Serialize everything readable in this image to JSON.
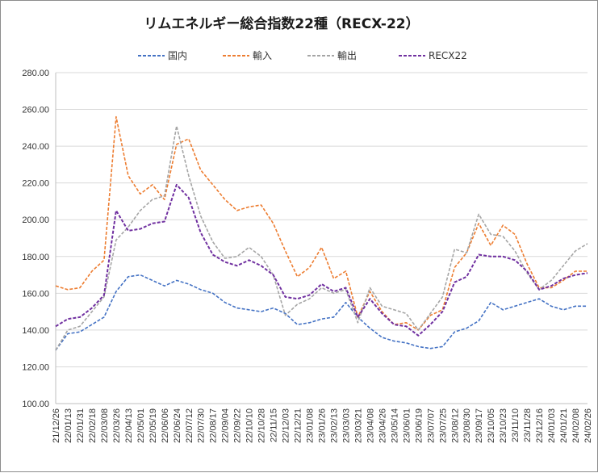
{
  "chart_data": {
    "type": "line",
    "title": "リムエネルギー総合指数22種（RECX-22）",
    "ylim": [
      100,
      280
    ],
    "yticks": [
      "100.00",
      "120.00",
      "140.00",
      "160.00",
      "180.00",
      "200.00",
      "220.00",
      "240.00",
      "260.00",
      "280.00"
    ],
    "grid": true,
    "legend_position": "top",
    "categories": [
      "21/12/26",
      "22/01/13",
      "22/01/31",
      "22/02/18",
      "22/03/08",
      "22/03/26",
      "22/04/13",
      "22/05/01",
      "22/05/19",
      "22/06/06",
      "22/06/24",
      "22/07/12",
      "22/07/30",
      "22/08/17",
      "22/09/04",
      "22/09/22",
      "22/10/10",
      "22/10/28",
      "22/11/15",
      "22/12/03",
      "22/12/21",
      "23/01/08",
      "23/01/26",
      "23/02/13",
      "23/03/03",
      "23/03/21",
      "23/04/08",
      "23/04/26",
      "23/05/14",
      "23/06/01",
      "23/06/19",
      "23/07/07",
      "23/07/25",
      "23/08/12",
      "23/08/30",
      "23/09/17",
      "23/10/05",
      "23/10/23",
      "23/11/10",
      "23/11/28",
      "23/12/16",
      "24/01/03",
      "24/01/21",
      "24/02/08",
      "24/02/26"
    ],
    "series": [
      {
        "name": "国内",
        "color": "#4472c4",
        "values": [
          129,
          138,
          139,
          143,
          147,
          161,
          169,
          170,
          167,
          164,
          167,
          165,
          162,
          160,
          155,
          152,
          151,
          150,
          152,
          149,
          143,
          144,
          146,
          147,
          155,
          147,
          141,
          136,
          134,
          133,
          131,
          130,
          131,
          139,
          141,
          145,
          155,
          151,
          153,
          155,
          157,
          153,
          151,
          153,
          153
        ]
      },
      {
        "name": "輸入",
        "color": "#ed7d31",
        "values": [
          164,
          162,
          163,
          172,
          178,
          256,
          224,
          214,
          219,
          211,
          241,
          244,
          227,
          219,
          211,
          205,
          207,
          208,
          198,
          183,
          169,
          174,
          185,
          168,
          172,
          147,
          161,
          150,
          143,
          144,
          140,
          148,
          151,
          174,
          182,
          198,
          186,
          197,
          192,
          176,
          163,
          163,
          167,
          172,
          172
        ]
      },
      {
        "name": "輸出",
        "color": "#a5a5a5",
        "values": [
          129,
          140,
          142,
          150,
          158,
          189,
          196,
          205,
          211,
          213,
          251,
          224,
          202,
          188,
          179,
          180,
          185,
          180,
          170,
          148,
          154,
          157,
          163,
          160,
          162,
          144,
          163,
          153,
          151,
          149,
          140,
          149,
          158,
          184,
          182,
          203,
          192,
          191,
          183,
          171,
          162,
          167,
          175,
          183,
          187
        ]
      },
      {
        "name": "RECX22",
        "color": "#7030a0",
        "values": [
          142,
          146,
          147,
          152,
          159,
          205,
          194,
          195,
          198,
          199,
          219,
          212,
          193,
          181,
          177,
          175,
          178,
          175,
          170,
          158,
          157,
          159,
          165,
          161,
          163,
          147,
          157,
          149,
          143,
          142,
          137,
          143,
          150,
          166,
          169,
          181,
          180,
          180,
          178,
          172,
          162,
          164,
          168,
          170,
          171
        ]
      }
    ]
  }
}
